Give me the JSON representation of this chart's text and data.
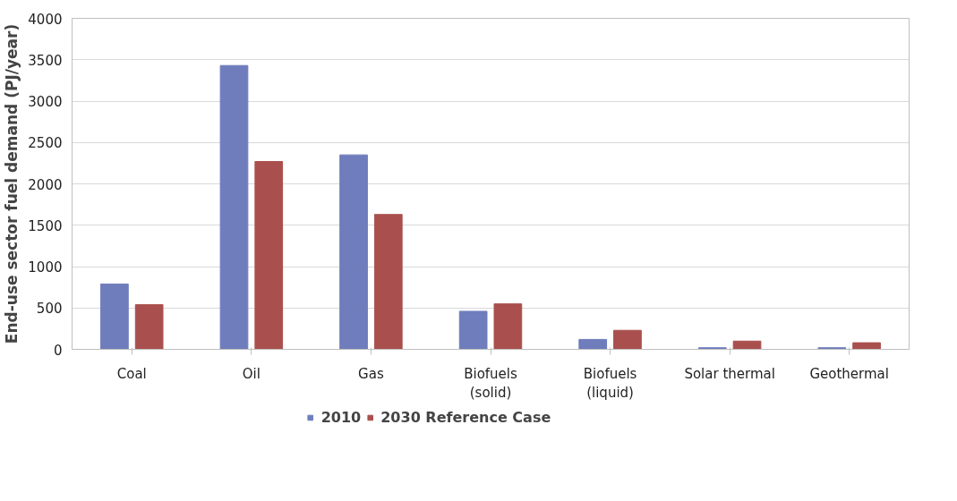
{
  "chart_data": {
    "type": "bar",
    "ylabel": "End-use sector fuel demand (PJ/year)",
    "categories": [
      "Coal",
      "Oil",
      "Gas",
      "Biofuels\n(solid)",
      "Biofuels\n(liquid)",
      "Solar thermal",
      "Geothermal"
    ],
    "series": [
      {
        "name": "2010",
        "color": "#6f7dbc",
        "values": [
          790,
          3430,
          2350,
          460,
          120,
          20,
          20
        ]
      },
      {
        "name": "2030 Reference Case",
        "color": "#a9504e",
        "values": [
          540,
          2270,
          1630,
          550,
          230,
          100,
          80
        ]
      }
    ],
    "ylim": [
      0,
      4000
    ],
    "yticks": [
      0,
      500,
      1000,
      1500,
      2000,
      2500,
      3000,
      3500,
      4000
    ],
    "grid": "y",
    "legend": "bottom"
  }
}
